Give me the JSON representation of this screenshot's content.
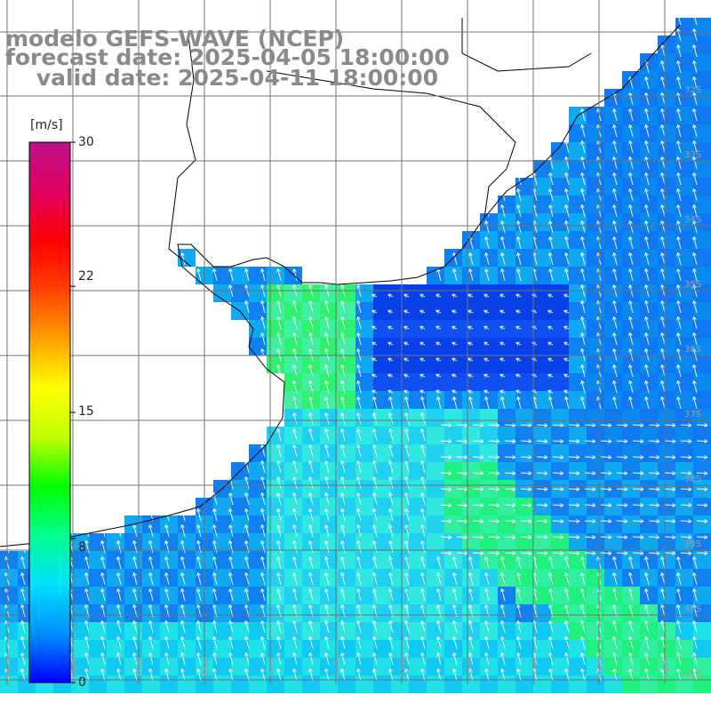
{
  "header": {
    "model": "modelo GEFS-WAVE (NCEP)",
    "forecast": "forecast date: 2025-04-05 18:00:00",
    "valid": "valid date: 2025-04-11 18:00:00"
  },
  "colorbar": {
    "unit": "[m/s]",
    "ticks": [
      "30",
      "22",
      "15",
      "8",
      "0"
    ],
    "tick_values": [
      30,
      22,
      15,
      8,
      0
    ],
    "range": [
      0,
      30
    ],
    "colors": [
      "#0000ff",
      "#0090ff",
      "#00e0ff",
      "#00ff90",
      "#00ff00",
      "#c0ff00",
      "#ffff00",
      "#ffa000",
      "#ff4000",
      "#ff0000",
      "#e00060",
      "#c0108a"
    ]
  },
  "map": {
    "lat_labels": [
      "32S",
      "33S",
      "34S",
      "35S",
      "36S",
      "37S",
      "38S",
      "39S",
      "40S",
      "41S"
    ],
    "lon_labels": [
      "61W",
      "60W",
      "59W",
      "58W",
      "57W",
      "56W",
      "55W",
      "54W",
      "53W",
      "52W",
      "51W"
    ],
    "ocean_low_color": "#0a40e8",
    "ocean_mid_color": "#1080f0",
    "ocean_high_color": "#20f080",
    "land_color": "#ffffff",
    "coast_color": "#000000",
    "grid_color": "#707070",
    "arrow_color": "#ffffff"
  }
}
